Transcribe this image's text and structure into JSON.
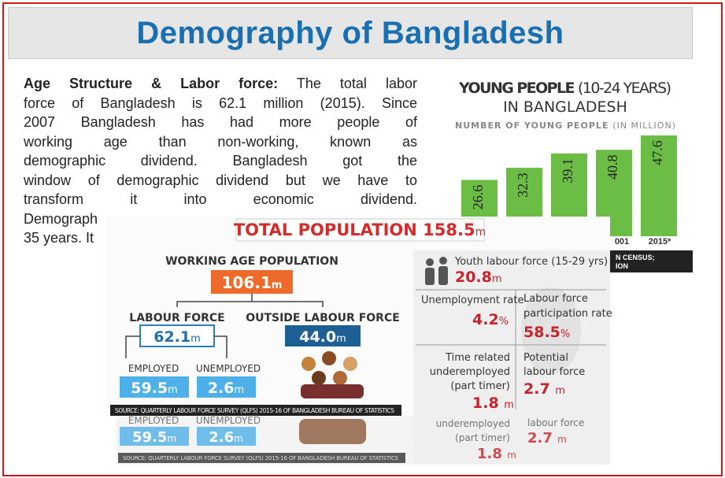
{
  "header": {
    "title": "Demography of Bangladesh"
  },
  "paragraph": {
    "lead": "Age Structure & Labor force:",
    "lines": [
      "The total labor",
      "force of Bangladesh is  62.1 million (2015). Since",
      "2007 Bangladesh has had more people of",
      "working age than non-working, known as",
      "demographic dividend. Bangladesh got the",
      "window of demographic dividend but we have to",
      "transform it into economic dividend.",
      "Demograph",
      "35 years. It"
    ]
  },
  "young_people": {
    "title": "YOUNG PEOPLE",
    "title_range": "(10-24 YEARS)",
    "title_line2": "IN BANGLADESH",
    "subtitle": "NUMBER OF YOUNG PEOPLE",
    "subtitle_unit": "(IN MILLION)",
    "values": [
      26.6,
      32.3,
      39.1,
      40.8,
      47.6
    ],
    "labels": [
      "001",
      "2015*"
    ],
    "source": [
      "N CENSUS;",
      "ION"
    ]
  },
  "infographic": {
    "title": "TOTAL POPULATION",
    "title_value": "158.5",
    "title_unit": "m",
    "working_age": {
      "label": "WORKING AGE POPULATION",
      "value": "106.1",
      "unit": "m"
    },
    "labour_force": {
      "label": "LABOUR FORCE",
      "value": "62.1",
      "unit": "m"
    },
    "outside_labour_force": {
      "label": "OUTSIDE LABOUR FORCE",
      "value": "44.0",
      "unit": "m"
    },
    "employed": {
      "label": "EMPLOYED",
      "value": "59.5",
      "unit": "m"
    },
    "unemployed": {
      "label": "UNEMPLOYED",
      "value": "2.6",
      "unit": "m"
    },
    "source": "SOURCE: QUARTERLY LABOUR FORCE SURVEY (QLFS) 2015-16 OF BANGLADESH BUREAU OF STATISTICS",
    "youth": {
      "label": "Youth labour force (15-29 yrs)",
      "value": "20.8",
      "unit": "m"
    },
    "unemployment_rate": {
      "label": "Unemployment rate",
      "value": "4.2",
      "unit": "%"
    },
    "participation_rate": {
      "label": [
        "Labour force",
        "participation rate"
      ],
      "value": "58.5",
      "unit": "%"
    },
    "underemployed": {
      "label": [
        "Time related",
        "underemployed",
        "(part timer)"
      ],
      "value": "1.8",
      "unit": "m"
    },
    "potential": {
      "label": [
        "Potential",
        "labour force"
      ],
      "value": "2.7",
      "unit": "m"
    },
    "ghost": {
      "employed": "EMPLOYED",
      "unemployed": "UNEMPLOYED",
      "employed_value": "59.5",
      "employed_unit": "m",
      "unemployed_value": "2.6",
      "unemployed_unit": "m",
      "source": "SOURCE: QUARTERLY LABOUR FORCE SURVEY (QLFS) 2015-16 OF BANGLADESH BUREAU OF STATISTICS",
      "underemployed": [
        "underemployed",
        "(part timer)"
      ],
      "underemployed_value": "1.8",
      "underemployed_unit": "m",
      "potential": "labour force",
      "potential_value": "2.7",
      "potential_unit": "m"
    }
  }
}
